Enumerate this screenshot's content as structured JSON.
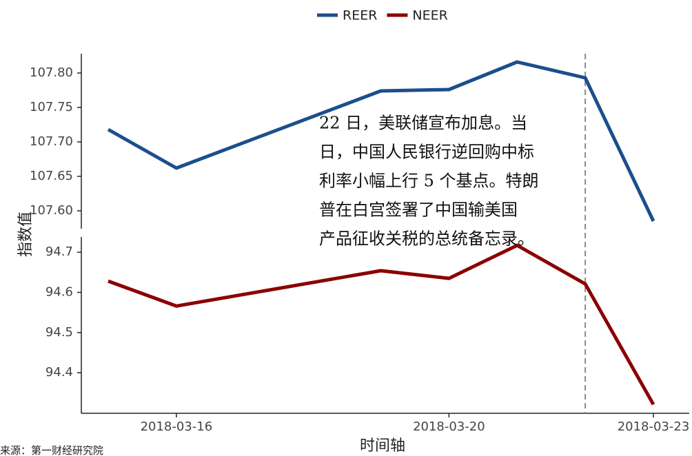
{
  "chart_data": {
    "type": "line",
    "x": [
      "2018-03-15",
      "2018-03-16",
      "2018-03-19",
      "2018-03-20",
      "2018-03-21",
      "2018-03-22",
      "2018-03-23"
    ],
    "xlim": [
      "2018-03-15",
      "2018-03-23"
    ],
    "xticks": [
      "2018-03-16",
      "2018-03-20",
      "2018-03-23"
    ],
    "x_label": "时间轴",
    "y_label": "指数值",
    "ylim": [
      107.574,
      107.828
    ],
    "yticks": [
      {
        "value": 107.6,
        "label": "107.60"
      },
      107.65,
      {
        "value": 107.7,
        "label": "107.70"
      },
      107.75,
      {
        "value": 107.8,
        "label": "107.80"
      }
    ],
    "y2lim": [
      94.299,
      94.738
    ],
    "y2ticks": [
      94.4,
      94.5,
      94.6,
      94.7
    ],
    "legend": "top",
    "series": [
      {
        "name": "REER",
        "color": "#1b4f8c",
        "values": [
          107.718,
          107.662,
          107.774,
          107.776,
          107.816,
          107.793,
          107.585
        ]
      },
      {
        "name": "NEER",
        "color": "#8b0000",
        "axis": "y2",
        "values": [
          94.628,
          94.566,
          94.654,
          94.635,
          94.717,
          94.621,
          94.321
        ]
      }
    ],
    "vline": {
      "x": "2018-03-22",
      "color": "#888888"
    },
    "annotation": [
      "22 日，美联储宣布加息。当",
      "日，中国人民银行逆回购中标",
      "利率小幅上行 5 个基点。特朗",
      "普在白宫签署了中国输美国",
      "产品征收关税的总统备忘录。"
    ],
    "source": "来源：第一财经研究院"
  }
}
